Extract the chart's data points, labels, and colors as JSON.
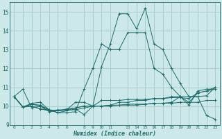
{
  "xlabel": "Humidex (Indice chaleur)",
  "bg_color": "#cce8e8",
  "grid_color": "#aacccc",
  "line_color": "#1a6b6b",
  "ylim": [
    9,
    15.5
  ],
  "xlim": [
    -0.5,
    23.5
  ],
  "yticks": [
    9,
    10,
    11,
    12,
    13,
    14,
    15
  ],
  "xticks": [
    0,
    1,
    2,
    3,
    4,
    5,
    6,
    8,
    9,
    10,
    11,
    13,
    14,
    15,
    16,
    17,
    18,
    19,
    20,
    21,
    22,
    23
  ],
  "series": [
    [
      10.5,
      10.9,
      9.9,
      10.0,
      9.7,
      9.75,
      9.8,
      9.8,
      9.9,
      10.0,
      10.0,
      10.05,
      10.05,
      10.1,
      10.1,
      10.1,
      10.15,
      10.15,
      10.15,
      10.2,
      10.2,
      10.2,
      10.3,
      10.3
    ],
    [
      10.5,
      9.95,
      10.0,
      9.85,
      9.8,
      9.75,
      9.85,
      9.9,
      10.0,
      10.0,
      10.0,
      10.0,
      10.05,
      10.05,
      10.05,
      10.1,
      10.15,
      10.15,
      10.2,
      10.5,
      10.5,
      10.5,
      10.55,
      11.0
    ],
    [
      10.5,
      9.95,
      10.0,
      9.85,
      9.75,
      9.8,
      9.8,
      9.9,
      10.0,
      10.0,
      10.3,
      10.3,
      10.3,
      10.35,
      10.35,
      10.35,
      10.4,
      10.4,
      10.45,
      10.45,
      10.4,
      10.7,
      10.8,
      10.9
    ],
    [
      10.5,
      9.95,
      10.15,
      10.2,
      9.8,
      9.75,
      9.8,
      10.2,
      10.2,
      10.0,
      10.0,
      10.05,
      10.2,
      10.2,
      10.3,
      10.3,
      10.4,
      10.4,
      10.5,
      10.5,
      10.05,
      10.8,
      10.9,
      10.9
    ],
    [
      10.5,
      9.95,
      10.1,
      10.05,
      9.8,
      9.65,
      9.75,
      9.85,
      9.55,
      10.0,
      12.1,
      13.3,
      14.9,
      14.9,
      14.1,
      15.2,
      13.3,
      13.0,
      12.0,
      11.2,
      10.5,
      10.5,
      9.5,
      9.3
    ],
    [
      10.5,
      9.95,
      10.1,
      10.0,
      9.8,
      9.65,
      9.65,
      9.7,
      10.9,
      12.0,
      13.3,
      13.0,
      13.0,
      13.9,
      13.9,
      13.9,
      12.0,
      11.7,
      11.0,
      10.5,
      10.2,
      10.7,
      10.8,
      11.0
    ]
  ]
}
